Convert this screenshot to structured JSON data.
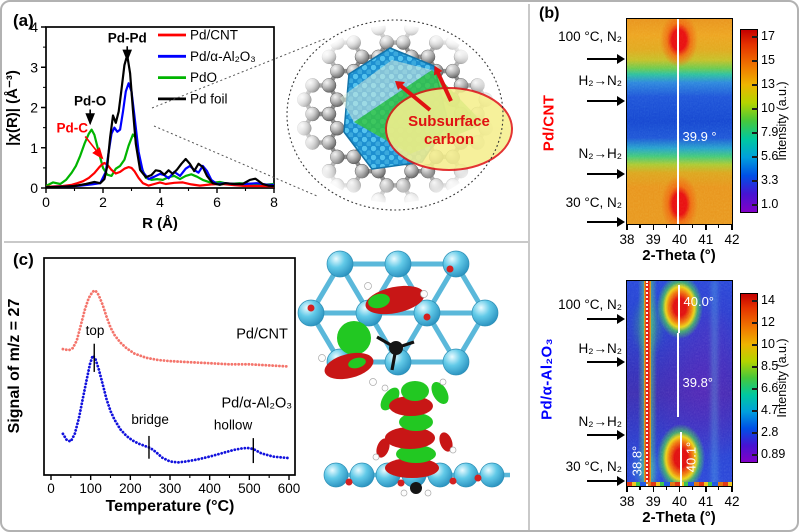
{
  "panels": {
    "a": "(a)",
    "b": "(b)",
    "c": "(c)"
  },
  "inset": {
    "line1": "Subsurface",
    "line2": "carbon"
  },
  "chart_data": [
    {
      "id": "exafs",
      "type": "line",
      "xlabel": "R (Å)",
      "ylabel": "|χ(R)| (Å⁻³)",
      "xlim": [
        0,
        8
      ],
      "ylim": [
        0,
        4
      ],
      "xticks": [
        0,
        2,
        4,
        6,
        8
      ],
      "yticks": [
        0,
        1,
        2,
        3,
        4
      ],
      "series": [
        {
          "name": "Pd/CNT",
          "color": "#ff0000",
          "x": [
            0,
            0.3,
            0.6,
            0.9,
            1.1,
            1.3,
            1.5,
            1.7,
            1.85,
            1.95,
            2.05,
            2.15,
            2.3,
            2.45,
            2.6,
            2.75,
            2.9,
            3.0,
            3.1,
            3.25,
            3.4,
            3.6,
            3.8,
            4.0,
            4.2,
            4.5,
            4.8,
            5.1,
            5.4,
            5.8,
            6.2,
            6.6,
            7.0,
            7.5,
            8.0
          ],
          "y": [
            0.03,
            0.04,
            0.05,
            0.08,
            0.12,
            0.17,
            0.25,
            0.37,
            0.5,
            0.58,
            0.62,
            0.58,
            0.45,
            0.36,
            0.4,
            0.48,
            0.52,
            0.5,
            0.42,
            0.25,
            0.12,
            0.06,
            0.1,
            0.14,
            0.1,
            0.13,
            0.14,
            0.09,
            0.06,
            0.09,
            0.1,
            0.07,
            0.05,
            0.05,
            0.04
          ]
        },
        {
          "name": "Pd/α-Al₂O₃",
          "color": "#0000ff",
          "x": [
            0,
            0.4,
            0.8,
            1.2,
            1.6,
            1.9,
            2.1,
            2.2,
            2.3,
            2.4,
            2.5,
            2.6,
            2.7,
            2.8,
            2.9,
            3.0,
            3.1,
            3.25,
            3.4,
            3.6,
            3.8,
            4.0,
            4.15,
            4.3,
            4.5,
            4.7,
            4.9,
            5.05,
            5.2,
            5.35,
            5.5,
            5.65,
            5.8,
            6.0,
            6.3,
            6.6,
            7.0,
            7.4,
            7.8,
            8.0
          ],
          "y": [
            0.02,
            0.03,
            0.04,
            0.06,
            0.09,
            0.12,
            0.4,
            0.9,
            1.35,
            1.5,
            1.4,
            1.45,
            1.9,
            2.4,
            2.6,
            2.4,
            1.8,
            0.9,
            0.4,
            0.22,
            0.28,
            0.35,
            0.32,
            0.24,
            0.4,
            0.3,
            0.48,
            0.55,
            0.45,
            0.38,
            0.55,
            0.42,
            0.2,
            0.1,
            0.12,
            0.1,
            0.1,
            0.12,
            0.08,
            0.08
          ]
        },
        {
          "name": "PdO",
          "color": "#00b400",
          "x": [
            0,
            0.25,
            0.5,
            0.7,
            0.9,
            1.05,
            1.2,
            1.35,
            1.5,
            1.6,
            1.7,
            1.85,
            2.0,
            2.15,
            2.3,
            2.45,
            2.6,
            2.75,
            2.9,
            3.05,
            3.15,
            3.3,
            3.5,
            3.7,
            3.9,
            4.1,
            4.3,
            4.5,
            4.7,
            4.9,
            5.1,
            5.3,
            5.5,
            5.8,
            6.1,
            6.4,
            6.8,
            7.2,
            7.6,
            8.0
          ],
          "y": [
            0.05,
            0.14,
            0.1,
            0.2,
            0.38,
            0.55,
            0.8,
            1.1,
            1.35,
            1.45,
            1.32,
            0.9,
            0.5,
            0.33,
            0.3,
            0.48,
            0.55,
            0.7,
            1.05,
            1.33,
            1.25,
            0.6,
            0.25,
            0.2,
            0.22,
            0.2,
            0.27,
            0.3,
            0.22,
            0.3,
            0.34,
            0.28,
            0.2,
            0.13,
            0.15,
            0.1,
            0.12,
            0.1,
            0.08,
            0.1
          ]
        },
        {
          "name": "Pd foil",
          "color": "#000000",
          "x": [
            0,
            0.5,
            1.0,
            1.4,
            1.7,
            1.9,
            2.05,
            2.15,
            2.25,
            2.35,
            2.45,
            2.55,
            2.65,
            2.75,
            2.85,
            2.95,
            3.05,
            3.15,
            3.3,
            3.5,
            3.7,
            3.85,
            4.0,
            4.15,
            4.3,
            4.45,
            4.6,
            4.75,
            4.9,
            5.05,
            5.2,
            5.35,
            5.5,
            5.65,
            5.85,
            6.1,
            6.3,
            6.6,
            6.9,
            7.15,
            7.35,
            7.6,
            7.8,
            8.0
          ],
          "y": [
            0.02,
            0.03,
            0.05,
            0.1,
            0.15,
            0.12,
            0.22,
            0.55,
            1.25,
            1.8,
            1.62,
            1.9,
            2.45,
            3.05,
            3.3,
            2.85,
            1.95,
            1.1,
            0.45,
            0.27,
            0.32,
            0.44,
            0.42,
            0.33,
            0.44,
            0.35,
            0.46,
            0.6,
            0.72,
            0.6,
            0.42,
            0.6,
            0.52,
            0.3,
            0.12,
            0.08,
            0.12,
            0.1,
            0.1,
            0.2,
            0.23,
            0.1,
            0.06,
            0.05
          ]
        }
      ],
      "annotations": [
        {
          "text": "Pd-Pd",
          "color": "#000000",
          "tx": 2.85,
          "ty": 3.62,
          "ax": 2.85,
          "ay": 3.18
        },
        {
          "text": "Pd-O",
          "color": "#000000",
          "tx": 1.55,
          "ty": 2.05,
          "ax": 1.55,
          "ay": 1.6
        },
        {
          "text": "Pd-C",
          "color": "#ff0000",
          "tx": 0.92,
          "ty": 1.38,
          "ax": 1.98,
          "ay": 0.74
        }
      ]
    },
    {
      "id": "xrd-pdcnt",
      "type": "heatmap",
      "sample": "Pd/CNT",
      "sample_color": "#ff0000",
      "xlabel": "2-Theta (°)",
      "xlim": [
        38,
        42
      ],
      "xticks": [
        38,
        39,
        40,
        41,
        42
      ],
      "conditions": [
        "100 °C, N₂",
        "H₂→N₂",
        "N₂→H₂",
        "30 °C, N₂"
      ],
      "peak_labels": [
        "39.9 °"
      ],
      "peak_2theta": [
        39.95
      ],
      "colorbar": {
        "label": "Intensity (a.u.)",
        "ticks": [
          "17",
          "15",
          "13",
          "10",
          "7.9",
          "5.6",
          "3.3",
          "1.0"
        ]
      }
    },
    {
      "id": "xrd-pdalumina",
      "type": "heatmap",
      "sample": "Pd/α-Al₂O₃",
      "sample_color": "#0000ff",
      "xlabel": "2-Theta (°)",
      "xlim": [
        38,
        42
      ],
      "xticks": [
        38,
        39,
        40,
        41,
        42
      ],
      "conditions": [
        "100 °C, N₂",
        "H₂→N₂",
        "N₂→H₂",
        "30 °C, N₂"
      ],
      "peak_labels": [
        "40.0°",
        "39.8°",
        "38.8°",
        "40.1°"
      ],
      "peak_2theta": [
        40.0,
        39.8,
        38.8,
        40.1
      ],
      "colorbar": {
        "label": "Intensity (a.u.)",
        "ticks": [
          "14",
          "12",
          "10",
          "8.5",
          "6.6",
          "4.7",
          "2.8",
          "0.89"
        ]
      }
    },
    {
      "id": "tpd",
      "type": "line",
      "xlabel": "Temperature (°C)",
      "ylabel": "Signal of m/z = 27",
      "xlim": [
        0,
        600
      ],
      "xticks": [
        0,
        100,
        200,
        300,
        400,
        500,
        600
      ],
      "series": [
        {
          "name": "Pd/CNT",
          "color": "#f4756c",
          "x": [
            30,
            45,
            55,
            65,
            75,
            85,
            95,
            105,
            112,
            120,
            130,
            140,
            150,
            160,
            175,
            190,
            210,
            240,
            270,
            300,
            350,
            400,
            450,
            500,
            550,
            600
          ],
          "y": [
            5.8,
            5.75,
            5.85,
            6.2,
            6.9,
            7.6,
            8.15,
            8.45,
            8.5,
            8.3,
            7.85,
            7.3,
            6.8,
            6.45,
            6.1,
            5.85,
            5.6,
            5.4,
            5.3,
            5.25,
            5.2,
            5.15,
            5.1,
            5.1,
            5.05,
            5.0
          ]
        },
        {
          "name": "Pd/α-Al₂O₃",
          "color": "#1212dd",
          "x": [
            30,
            40,
            50,
            60,
            70,
            80,
            90,
            98,
            105,
            112,
            120,
            130,
            140,
            150,
            160,
            175,
            190,
            205,
            220,
            235,
            250,
            265,
            280,
            300,
            320,
            340,
            370,
            400,
            430,
            460,
            480,
            495,
            510,
            530,
            560,
            600
          ],
          "y": [
            1.9,
            1.6,
            1.55,
            1.9,
            2.6,
            3.5,
            4.4,
            5.1,
            5.5,
            5.35,
            4.9,
            4.2,
            3.5,
            2.95,
            2.55,
            2.1,
            1.8,
            1.6,
            1.45,
            1.35,
            1.25,
            1.05,
            0.8,
            0.62,
            0.58,
            0.62,
            0.72,
            0.85,
            1.0,
            1.15,
            1.22,
            1.25,
            1.2,
            1.0,
            0.85,
            0.78
          ]
        }
      ],
      "site_annotations": [
        {
          "text": "top",
          "label_x": 111,
          "label_y": 6.45,
          "tick_x": 109,
          "tick_y1": 6.05,
          "tick_y2": 4.75
        },
        {
          "text": "bridge",
          "label_x": 250,
          "label_y": 2.35,
          "tick_x": 247,
          "tick_y1": 1.8,
          "tick_y2": 0.75
        },
        {
          "text": "hollow",
          "label_x": 459,
          "label_y": 2.1,
          "tick_x": 510,
          "tick_y1": 1.7,
          "tick_y2": 0.55
        }
      ],
      "series_labels": [
        {
          "text": "Pd/CNT",
          "x": 532,
          "y": 6.3
        },
        {
          "text": "Pd/α-Al₂O₃",
          "x": 519,
          "y": 3.1
        }
      ]
    }
  ]
}
